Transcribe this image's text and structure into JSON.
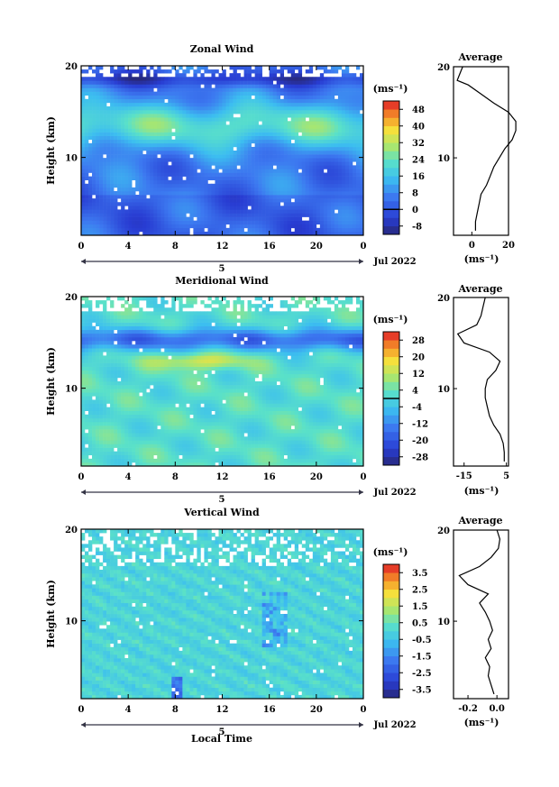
{
  "figure": {
    "panels": [
      {
        "title": "Zonal Wind",
        "ylabel": "Height (km)",
        "colorbar_unit": "(ms⁻¹)",
        "colorbar_ticks": [
          "48",
          "40",
          "32",
          "24",
          "16",
          "8",
          "0",
          "-8"
        ],
        "colorbar_range": [
          -12,
          52
        ],
        "zero_line": 0,
        "date_label": "Jul 2022",
        "day_marker": "5",
        "profile": {
          "title": "Average",
          "xlabel": "(ms⁻¹)",
          "xticks": [
            "0",
            "20"
          ],
          "xlim": [
            -10,
            20
          ]
        }
      },
      {
        "title": "Meridional Wind",
        "ylabel": "Height (km)",
        "colorbar_unit": "(ms⁻¹)",
        "colorbar_ticks": [
          "28",
          "20",
          "12",
          "4",
          "-4",
          "-12",
          "-20",
          "-28"
        ],
        "colorbar_range": [
          -32,
          32
        ],
        "zero_line": 0,
        "date_label": "Jul 2022",
        "day_marker": "5",
        "profile": {
          "title": "Average",
          "xlabel": "(ms⁻¹)",
          "xticks": [
            "-15",
            "5"
          ],
          "xlim": [
            -20,
            6
          ]
        }
      },
      {
        "title": "Vertical Wind",
        "ylabel": "Height (km)",
        "xlabel": "Local Time",
        "colorbar_unit": "(ms⁻¹)",
        "colorbar_ticks": [
          "3.5",
          "2.5",
          "1.5",
          "0.5",
          "-0.5",
          "-1.5",
          "-2.5",
          "-3.5"
        ],
        "colorbar_range": [
          -4,
          4
        ],
        "date_label": "Jul 2022",
        "day_marker": "5",
        "profile": {
          "title": "Average",
          "xlabel": "(ms⁻¹)",
          "xticks": [
            "-0.2",
            "0.0"
          ],
          "xlim": [
            -0.3,
            0.08
          ]
        }
      }
    ]
  },
  "chart_data": [
    {
      "type": "heatmap",
      "title": "Zonal Wind",
      "xlabel": "",
      "ylabel": "Height (km)",
      "x_ticks": [
        "0",
        "4",
        "8",
        "12",
        "16",
        "20",
        "0"
      ],
      "x_range": [
        0,
        24
      ],
      "y_ticks": [
        "10",
        "20"
      ],
      "y_range": [
        1.5,
        20
      ],
      "color_unit": "(ms⁻¹)",
      "profile": {
        "title": "Average",
        "heights": [
          2,
          3,
          4,
          5,
          6,
          7,
          8,
          9,
          10,
          11,
          12,
          13,
          14,
          15,
          16,
          17,
          18,
          18.5,
          19,
          19.5,
          20
        ],
        "values": [
          2,
          2,
          3,
          4,
          5,
          8,
          10,
          12,
          15,
          18,
          22,
          24,
          24,
          20,
          12,
          5,
          -2,
          -8,
          -7,
          -6,
          -5
        ]
      }
    },
    {
      "type": "heatmap",
      "title": "Meridional Wind",
      "xlabel": "",
      "ylabel": "Height (km)",
      "x_ticks": [
        "0",
        "4",
        "8",
        "12",
        "16",
        "20",
        "0"
      ],
      "x_range": [
        0,
        24
      ],
      "y_ticks": [
        "10",
        "20"
      ],
      "y_range": [
        1.5,
        20
      ],
      "color_unit": "(ms⁻¹)",
      "profile": {
        "title": "Average",
        "heights": [
          2,
          3,
          4,
          5,
          6,
          7,
          8,
          9,
          10,
          11,
          12,
          13,
          14,
          15,
          16,
          17,
          18,
          19,
          20
        ],
        "values": [
          4,
          4,
          3.5,
          2,
          -1,
          -3,
          -4,
          -5,
          -5,
          -4,
          0,
          2,
          -3,
          -15,
          -18,
          -9,
          -7,
          -6,
          -5
        ]
      }
    },
    {
      "type": "heatmap",
      "title": "Vertical Wind",
      "xlabel": "Local Time",
      "ylabel": "Height (km)",
      "x_ticks": [
        "0",
        "4",
        "8",
        "12",
        "16",
        "20",
        "0"
      ],
      "x_range": [
        0,
        24
      ],
      "y_ticks": [
        "10",
        "20"
      ],
      "y_range": [
        1.5,
        20
      ],
      "color_unit": "(ms⁻¹)",
      "profile": {
        "title": "Average",
        "heights": [
          2,
          3,
          4,
          5,
          6,
          7,
          8,
          9,
          10,
          11,
          12,
          13,
          14,
          15,
          16,
          17,
          18,
          19,
          20
        ],
        "values": [
          -0.02,
          -0.04,
          -0.06,
          -0.05,
          -0.08,
          -0.04,
          -0.06,
          -0.03,
          -0.05,
          -0.08,
          -0.12,
          -0.06,
          -0.2,
          -0.26,
          -0.12,
          -0.04,
          0.01,
          0.02,
          0.0
        ]
      }
    }
  ]
}
